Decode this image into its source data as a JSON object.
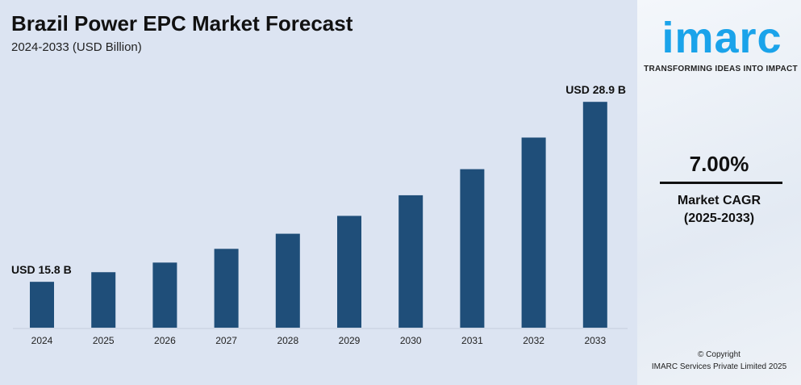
{
  "header": {
    "title": "Brazil Power EPC Market Forecast",
    "subtitle": "2024-2033 (USD Billion)"
  },
  "brand": {
    "logo": "imarc",
    "tagline": "TRANSFORMING IDEAS INTO IMPACT",
    "color": "#1aa3ea"
  },
  "kpi": {
    "value": "7.00%",
    "label": "Market CAGR",
    "period": "(2025-2033)"
  },
  "footer": {
    "line1": "© Copyright",
    "line2": "IMARC Services Private Limited 2025"
  },
  "chart_data": {
    "type": "bar",
    "title": "Brazil Power EPC Market Forecast",
    "subtitle": "2024-2033 (USD Billion)",
    "categories": [
      "2024",
      "2025",
      "2026",
      "2027",
      "2028",
      "2029",
      "2030",
      "2031",
      "2032",
      "2033"
    ],
    "values": [
      15.8,
      16.5,
      17.2,
      18.2,
      19.3,
      20.6,
      22.1,
      24.0,
      26.3,
      28.9
    ],
    "data_labels": {
      "0": "USD 15.8 B",
      "9": "USD 28.9 B"
    },
    "bar_color": "#1f4e79",
    "grid": false,
    "xlabel": "",
    "ylabel": ""
  }
}
